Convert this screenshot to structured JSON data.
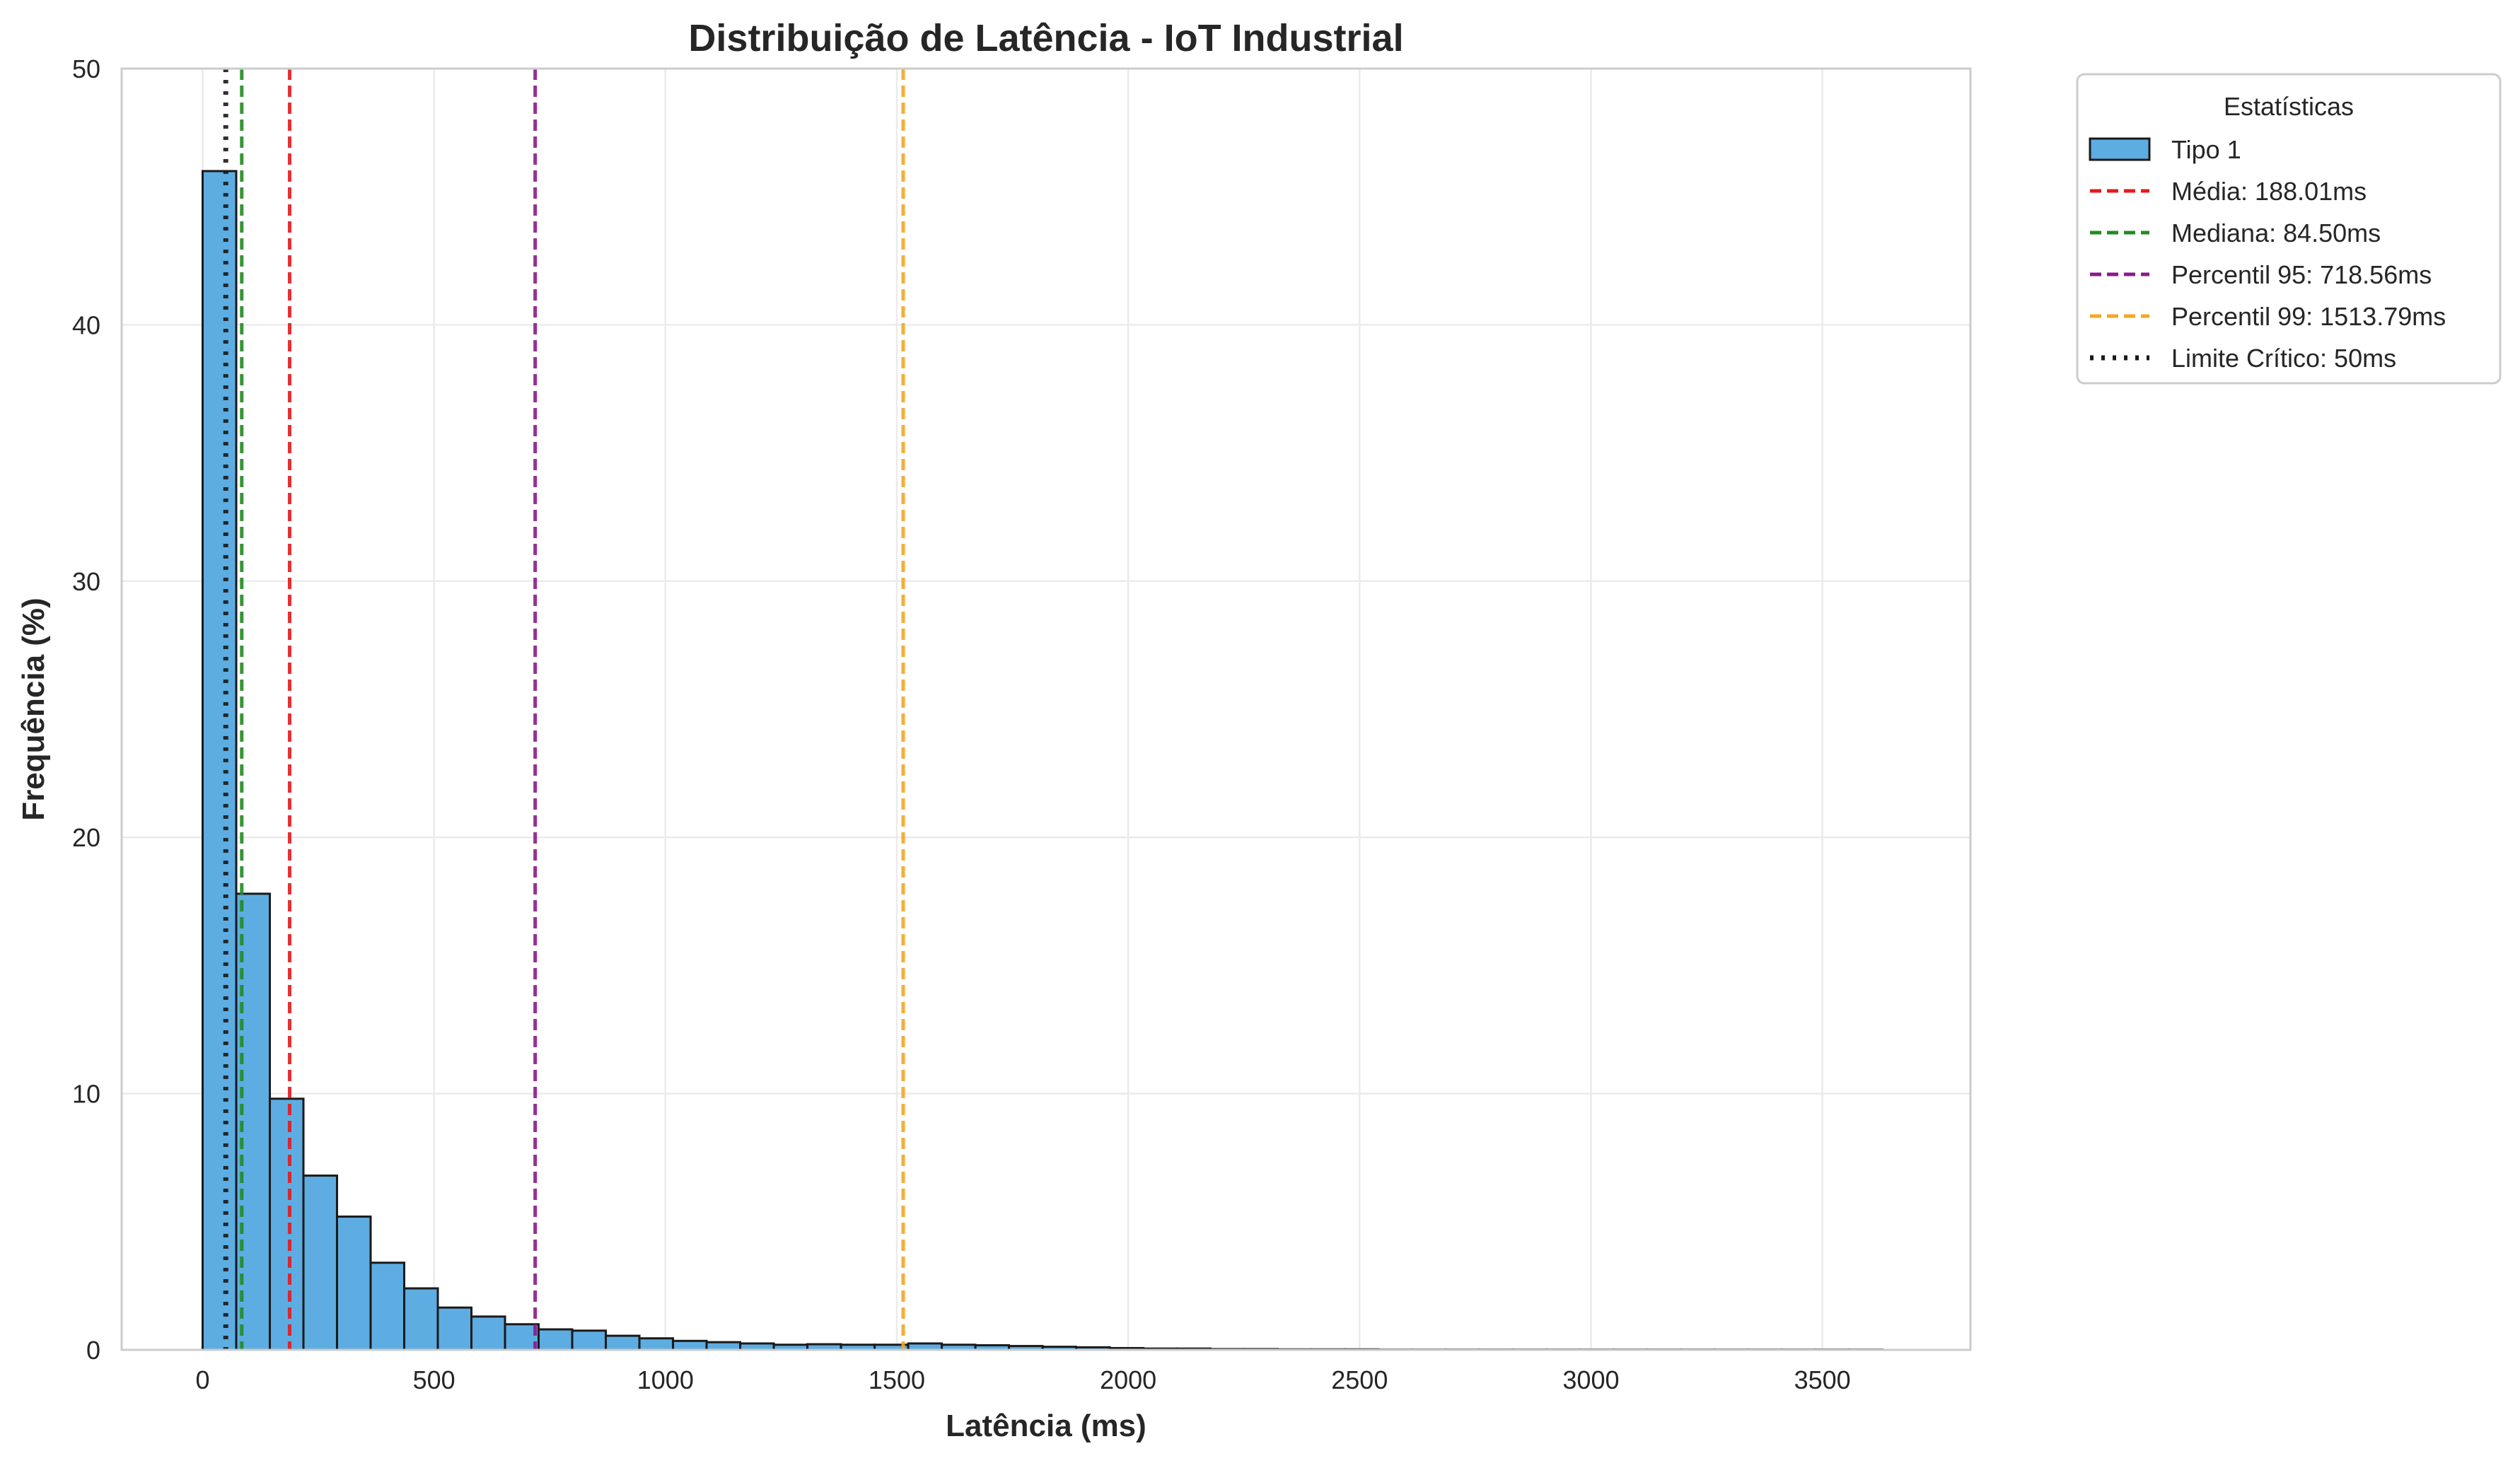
{
  "chart_data": {
    "type": "bar",
    "title": "Distribuição de Latência - IoT Industrial",
    "xlabel": "Latência (ms)",
    "ylabel": "Frequência (%)",
    "xlim": [
      -175,
      3820
    ],
    "ylim": [
      0,
      50
    ],
    "xticks": [
      0,
      500,
      1000,
      1500,
      2000,
      2500,
      3000,
      3500
    ],
    "yticks": [
      0,
      10,
      20,
      30,
      40,
      50
    ],
    "grid": true,
    "legend_title": "Estatísticas",
    "legend_placement": "outside-right-top",
    "bin_width": 72.6,
    "bin_start": 0,
    "series": [
      {
        "name": "Tipo 1",
        "color": "#5dade2",
        "edgecolor": "#1a1a1a",
        "values": [
          46.0,
          17.8,
          9.8,
          6.8,
          5.2,
          3.4,
          2.4,
          1.65,
          1.3,
          1.0,
          0.8,
          0.75,
          0.55,
          0.45,
          0.35,
          0.3,
          0.25,
          0.2,
          0.22,
          0.2,
          0.2,
          0.25,
          0.2,
          0.18,
          0.15,
          0.12,
          0.1,
          0.07,
          0.05,
          0.05,
          0.03,
          0.03,
          0.02,
          0.02,
          0.02,
          0.01,
          0.01,
          0.01,
          0.01,
          0.01,
          0.01,
          0.01,
          0.01,
          0.01,
          0.01,
          0.01,
          0.01,
          0.01,
          0.01,
          0.01
        ]
      }
    ],
    "reference_lines": [
      {
        "label": "Média: 188.01ms",
        "x": 188.01,
        "color": "#e41a1c",
        "style": "dashed"
      },
      {
        "label": "Mediana: 84.50ms",
        "x": 84.5,
        "color": "#228b22",
        "style": "dashed"
      },
      {
        "label": "Percentil 95: 718.56ms",
        "x": 718.56,
        "color": "#8b1a89",
        "style": "dashed"
      },
      {
        "label": "Percentil 99: 1513.79ms",
        "x": 1513.79,
        "color": "#f5a623",
        "style": "dashed"
      },
      {
        "label": "Limite Crítico: 50ms",
        "x": 50,
        "color": "#1a1a1a",
        "style": "dotted"
      }
    ]
  }
}
